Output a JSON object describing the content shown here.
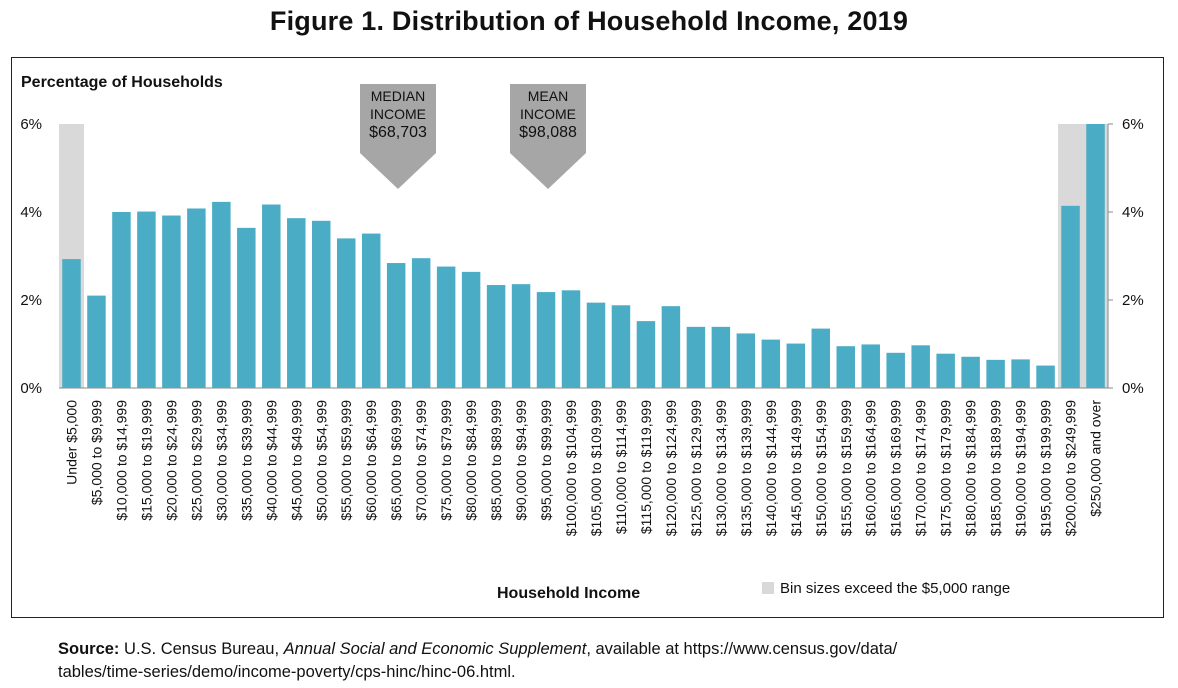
{
  "figure_title": "Figure 1. Distribution of Household Income, 2019",
  "source": {
    "label": "Source:",
    "org": "U.S. Census Bureau,",
    "pub": "Annual Social and Economic Supplement",
    "rest": ",  available at https://www.census.gov/data/",
    "line2": "tables/time-series/demo/income-poverty/cps-hinc/hinc-06.html."
  },
  "legend": {
    "text": "Bin sizes exceed the $5,000 range",
    "color": "#d9d9d9"
  },
  "callouts": [
    {
      "lines": [
        "MEDIAN",
        "INCOME",
        "$68,703"
      ],
      "value": 68703,
      "color": "#a6a6a6"
    },
    {
      "lines": [
        "MEAN",
        "INCOME",
        "$98,088"
      ],
      "value": 98088,
      "color": "#a6a6a6"
    }
  ],
  "chart_data": {
    "type": "bar",
    "title": "Figure 1. Distribution of Household Income, 2019",
    "ylabel": "Percentage of Households",
    "xlabel": "Household Income",
    "ylim": [
      0,
      6
    ],
    "yticks": [
      "0%",
      "2%",
      "4%",
      "6%"
    ],
    "grid": false,
    "bar_color": "#4bacc6",
    "highlight_color": "#d9d9d9",
    "highlighted_categories": [
      "Under $5,000",
      "$200,000 to $249,999",
      "$250,000 and over"
    ],
    "categories": [
      "Under $5,000",
      "$5,000  to  $9,999",
      "$10,000 to $14,999",
      "$15,000 to $19,999",
      "$20,000 to $24,999",
      "$25,000 to $29,999",
      "$30,000 to $34,999",
      "$35,000 to $39,999",
      "$40,000 to $44,999",
      "$45,000 to $49,999",
      "$50,000 to $54,999",
      "$55,000 to $59,999",
      "$60,000 to $64,999",
      "$65,000 to $69,999",
      "$70,000 to $74,999",
      "$75,000 to $79,999",
      "$80,000 to $84,999",
      "$85,000 to $89,999",
      "$90,000 to $94,999",
      "$95,000 to $99,999",
      "$100,000 to $104,999",
      "$105,000 to $109,999",
      "$110,000 to $114,999",
      "$115,000 to $119,999",
      "$120,000 to $124,999",
      "$125,000 to $129,999",
      "$130,000 to $134,999",
      "$135,000 to $139,999",
      "$140,000 to $144,999",
      "$145,000 to $149,999",
      "$150,000 to $154,999",
      "$155,000 to $159,999",
      "$160,000 to $164,999",
      "$165,000 to $169,999",
      "$170,000 to $174,999",
      "$175,000 to $179,999",
      "$180,000 to $184,999",
      "$185,000 to $189,999",
      "$190,000 to $194,999",
      "$195,000 to $199,999",
      "$200,000 to $249,999",
      "$250,000 and over"
    ],
    "values": [
      2.93,
      2.1,
      4.0,
      4.01,
      3.92,
      4.08,
      4.23,
      3.64,
      4.17,
      3.86,
      3.8,
      3.4,
      3.51,
      2.84,
      2.95,
      2.76,
      2.64,
      2.34,
      2.36,
      2.18,
      2.22,
      1.94,
      1.88,
      1.52,
      1.86,
      1.39,
      1.39,
      1.24,
      1.1,
      1.01,
      1.35,
      0.95,
      0.99,
      0.8,
      0.97,
      0.78,
      0.71,
      0.64,
      0.65,
      0.51,
      4.14,
      6.0
    ]
  }
}
